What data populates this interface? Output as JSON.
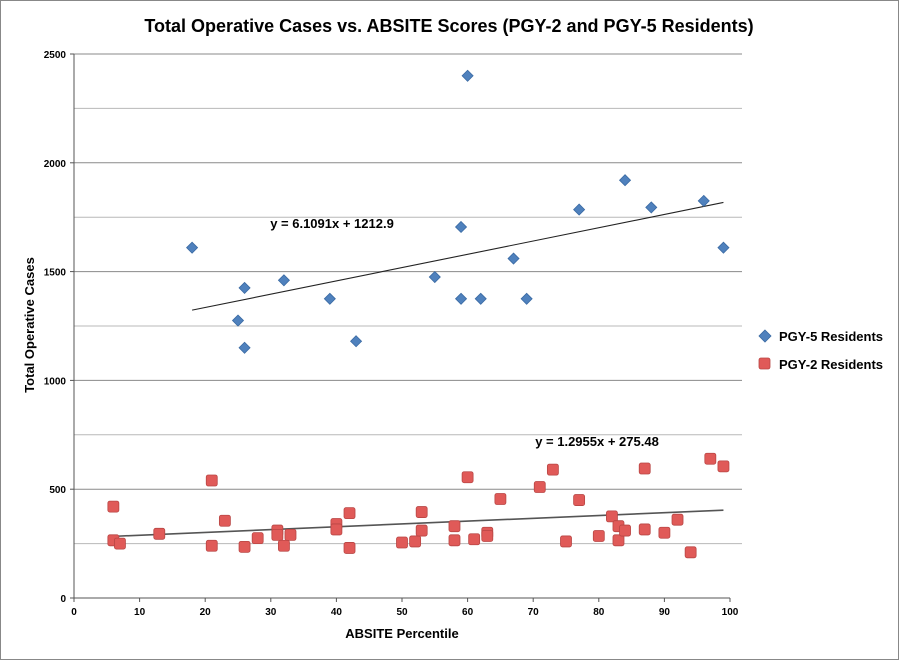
{
  "chart_data": {
    "type": "scatter",
    "title": "Total Operative Cases vs. ABSITE Scores (PGY-2 and PGY-5 Residents)",
    "xlabel": "ABSITE Percentile",
    "ylabel": "Total Operative Cases",
    "xlim": [
      0,
      100
    ],
    "ylim": [
      0,
      2500
    ],
    "xticks": [
      "0",
      "10",
      "20",
      "30",
      "40",
      "50",
      "60",
      "70",
      "80",
      "90",
      "100"
    ],
    "yticks": [
      "0",
      "500",
      "1000",
      "1500",
      "2000",
      "2500"
    ],
    "grid": "horizontal",
    "legend_position": "right",
    "series": [
      {
        "name": "PGY-5 Residents",
        "marker": "diamond",
        "color": "#4f81bd",
        "points": [
          [
            18,
            1610
          ],
          [
            25,
            1275
          ],
          [
            26,
            1425
          ],
          [
            26,
            1150
          ],
          [
            32,
            1460
          ],
          [
            39,
            1375
          ],
          [
            43,
            1180
          ],
          [
            55,
            1475
          ],
          [
            59,
            1705
          ],
          [
            59,
            1375
          ],
          [
            60,
            2400
          ],
          [
            62,
            1375
          ],
          [
            67,
            1560
          ],
          [
            69,
            1375
          ],
          [
            77,
            1785
          ],
          [
            84,
            1920
          ],
          [
            88,
            1795
          ],
          [
            96,
            1825
          ],
          [
            99,
            1610
          ]
        ],
        "trendline": {
          "slope": 6.1091,
          "intercept": 1212.9,
          "x_range": [
            18,
            99
          ],
          "label": "y = 6.1091x + 1212.9"
        }
      },
      {
        "name": "PGY-2 Residents",
        "marker": "square",
        "color": "#e05a58",
        "points": [
          [
            6,
            420
          ],
          [
            6,
            265
          ],
          [
            7,
            250
          ],
          [
            13,
            295
          ],
          [
            21,
            540
          ],
          [
            21,
            240
          ],
          [
            23,
            355
          ],
          [
            26,
            235
          ],
          [
            28,
            275
          ],
          [
            31,
            310
          ],
          [
            31,
            290
          ],
          [
            32,
            240
          ],
          [
            33,
            290
          ],
          [
            40,
            340
          ],
          [
            40,
            315
          ],
          [
            42,
            390
          ],
          [
            42,
            230
          ],
          [
            50,
            255
          ],
          [
            52,
            260
          ],
          [
            53,
            395
          ],
          [
            53,
            310
          ],
          [
            58,
            330
          ],
          [
            58,
            265
          ],
          [
            60,
            555
          ],
          [
            61,
            270
          ],
          [
            63,
            300
          ],
          [
            63,
            285
          ],
          [
            65,
            455
          ],
          [
            71,
            510
          ],
          [
            73,
            590
          ],
          [
            75,
            260
          ],
          [
            77,
            450
          ],
          [
            80,
            285
          ],
          [
            82,
            375
          ],
          [
            83,
            330
          ],
          [
            83,
            265
          ],
          [
            84,
            310
          ],
          [
            87,
            595
          ],
          [
            87,
            315
          ],
          [
            90,
            300
          ],
          [
            92,
            360
          ],
          [
            94,
            210
          ],
          [
            97,
            640
          ],
          [
            99,
            605
          ]
        ],
        "trendline": {
          "slope": 1.2955,
          "intercept": 275.48,
          "x_range": [
            6,
            99
          ],
          "label": "y = 1.2955x + 275.48"
        }
      }
    ]
  }
}
